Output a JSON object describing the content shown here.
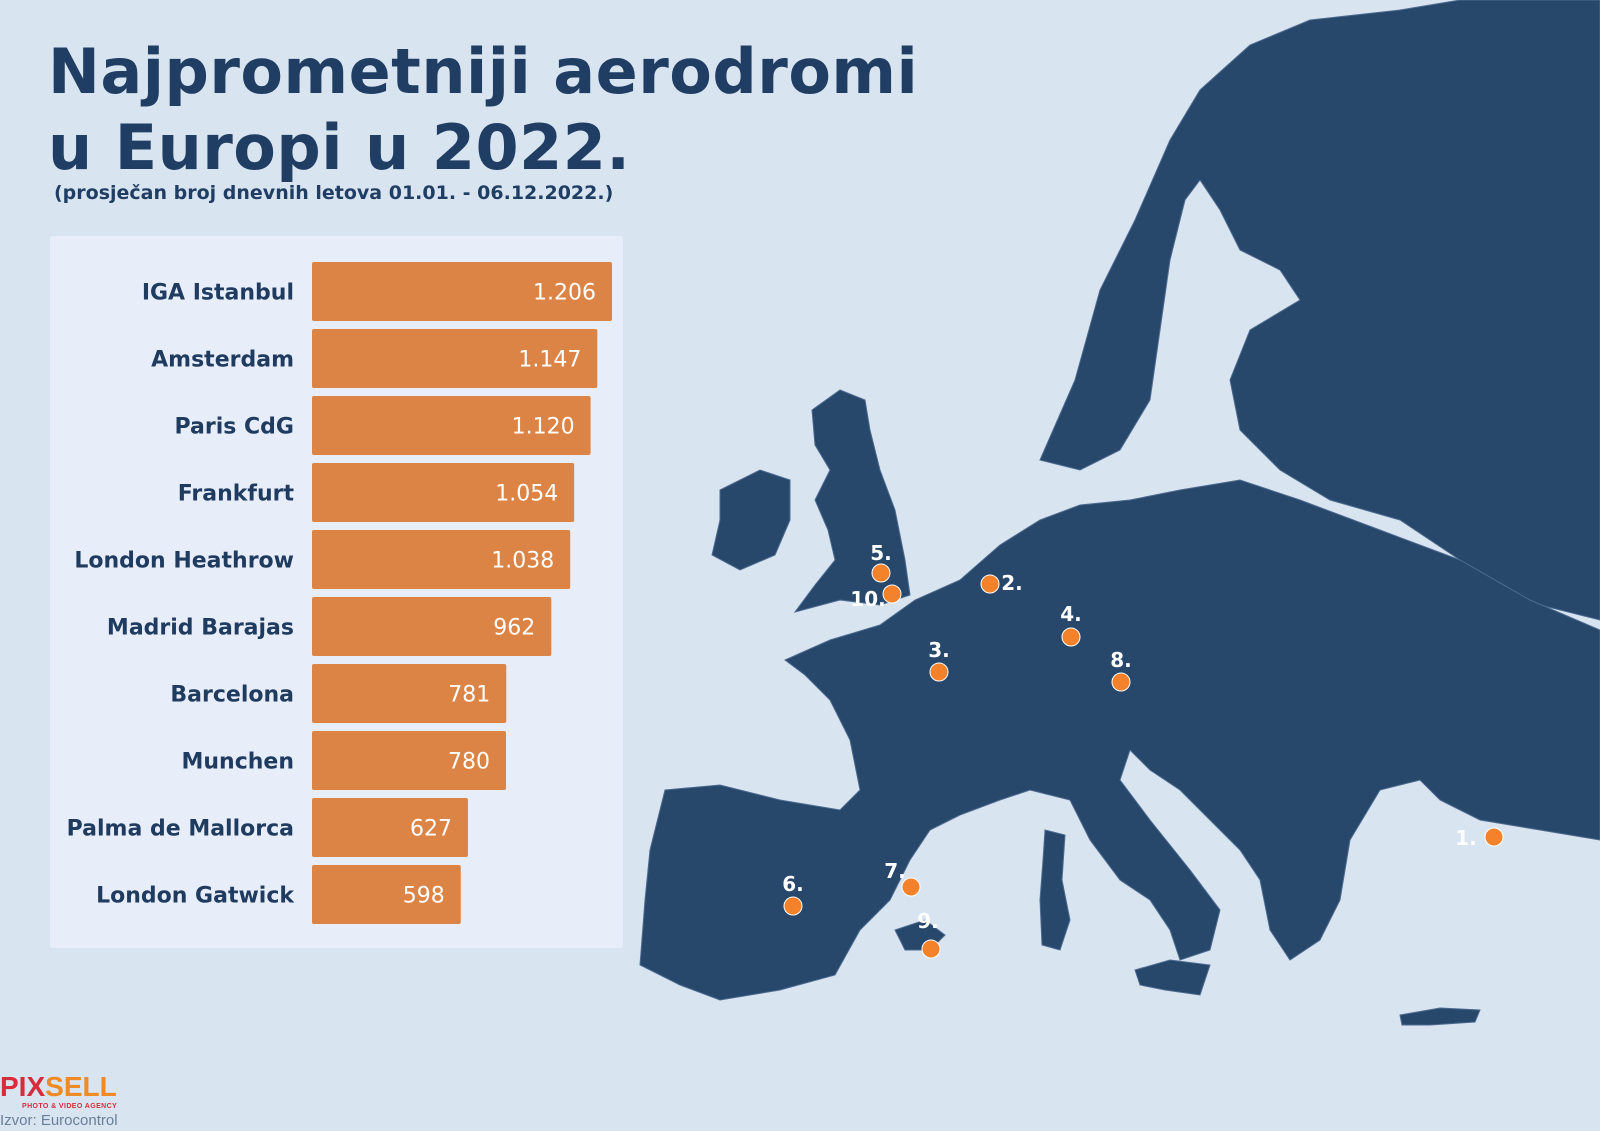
{
  "title_line1": "Najprometniji aerodromi",
  "title_line2": "u Europi u 2022.",
  "subtitle": "(prosječan broj dnevnih letova 01.01. - 06.12.2022.)",
  "colors": {
    "bar": "#dc8446",
    "map": "#27476b",
    "marker": "#f4822a",
    "background": "#d9e4f1"
  },
  "chart_data": {
    "type": "bar",
    "orientation": "horizontal",
    "categories": [
      "IGA Istanbul",
      "Amsterdam",
      "Paris CdG",
      "Frankfurt",
      "London Heathrow",
      "Madrid Barajas",
      "Barcelona",
      "Munchen",
      "Palma de Mallorca",
      "London Gatwick"
    ],
    "values": [
      1206,
      1147,
      1120,
      1054,
      1038,
      962,
      781,
      780,
      627,
      598
    ],
    "value_labels": [
      "1.206",
      "1.147",
      "1.120",
      "1.054",
      "1.038",
      "962",
      "781",
      "780",
      "627",
      "598"
    ],
    "grid": false
  },
  "map": {
    "markers": [
      {
        "label": "1.",
        "city": "IGA Istanbul"
      },
      {
        "label": "2.",
        "city": "Amsterdam"
      },
      {
        "label": "3.",
        "city": "Paris CdG"
      },
      {
        "label": "4.",
        "city": "Frankfurt"
      },
      {
        "label": "5.",
        "city": "London Heathrow"
      },
      {
        "label": "6.",
        "city": "Madrid Barajas"
      },
      {
        "label": "7.",
        "city": "Barcelona"
      },
      {
        "label": "8.",
        "city": "Munchen"
      },
      {
        "label": "9.",
        "city": "Palma de Mallorca"
      },
      {
        "label": "10.",
        "city": "London Gatwick"
      }
    ]
  },
  "logo": {
    "part1": "PIX",
    "part2": "SELL",
    "tagline": "PHOTO & VIDEO AGENCY"
  },
  "source": "Izvor: Eurocontrol"
}
